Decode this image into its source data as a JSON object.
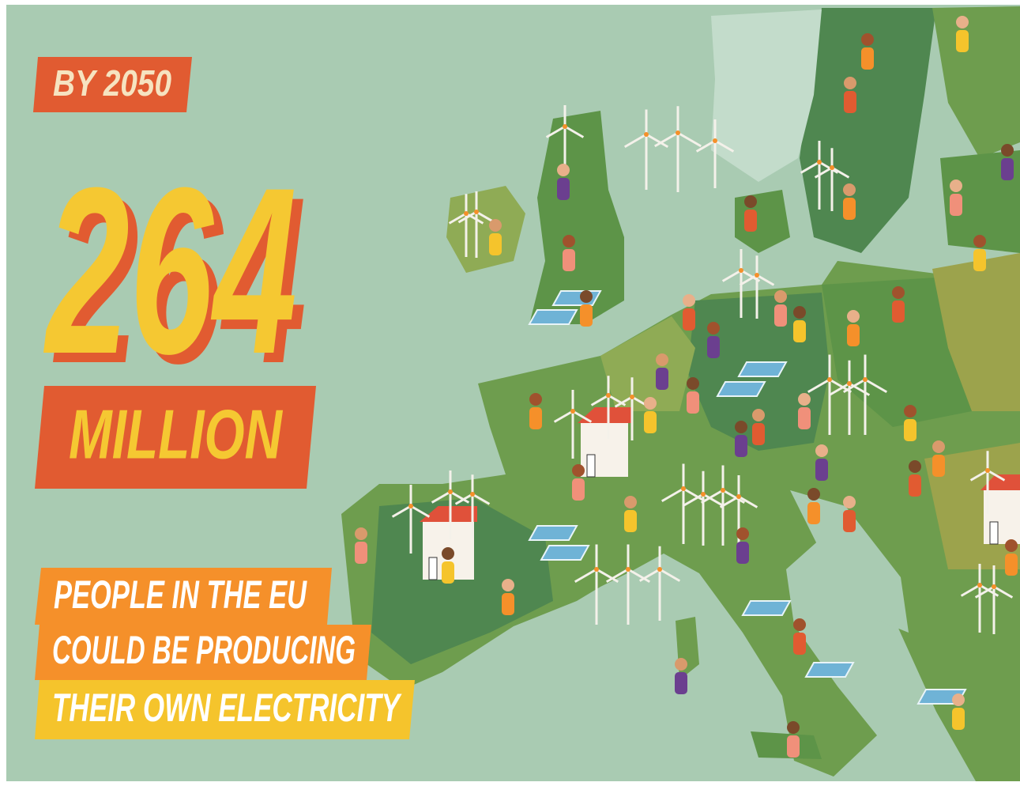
{
  "badge": "BY 2050",
  "number": "264",
  "unit": "MILLION",
  "lines": [
    "PEOPLE IN THE EU",
    "COULD BE PRODUCING",
    "THEIR OWN ELECTRICITY"
  ]
}
